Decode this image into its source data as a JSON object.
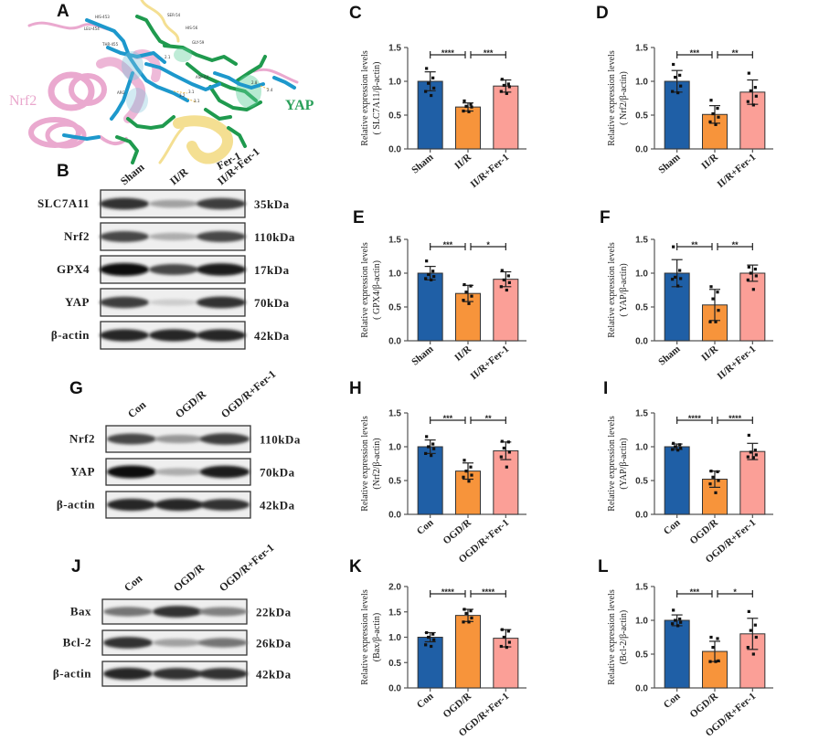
{
  "figure": {
    "panel_letters": [
      "A",
      "B",
      "C",
      "D",
      "E",
      "F",
      "G",
      "H",
      "I",
      "J",
      "K",
      "L"
    ]
  },
  "panel_a": {
    "letter": "A",
    "protein_labels": {
      "nrf2": "Nrf2",
      "yap": "YAP",
      "ligand": "Fer-1"
    },
    "residue_labels": [
      "HIS-453",
      "LEU-454",
      "THR-455",
      "SER-54",
      "HIS-56",
      "GLY-59",
      "ASP-64",
      "ARG",
      "3.2",
      "3.1",
      "3.1",
      "2.8",
      "2.4",
      "2.1"
    ],
    "colors": {
      "nrf2": "#e9a8cf",
      "yap": "#27a35a",
      "fer1": "#f2dc8a",
      "nrf2_residue": "#1f9bd0"
    }
  },
  "panel_b": {
    "letter": "B",
    "lanes": [
      "Sham",
      "II/R",
      "II/R+Fer-1"
    ],
    "rows": [
      {
        "protein": "SLC7A11",
        "kda": "35kDa",
        "intensity": [
          0.85,
          0.35,
          0.8
        ]
      },
      {
        "protein": "Nrf2",
        "kda": "110kDa",
        "intensity": [
          0.75,
          0.3,
          0.75
        ]
      },
      {
        "protein": "GPX4",
        "kda": "17kDa",
        "intensity": [
          1.0,
          0.75,
          0.95
        ]
      },
      {
        "protein": "YAP",
        "kda": "70kDa",
        "intensity": [
          0.8,
          0.15,
          0.85
        ]
      },
      {
        "protein": "β-actin",
        "kda": "42kDa",
        "intensity": [
          0.9,
          0.9,
          0.9
        ]
      }
    ]
  },
  "panel_g": {
    "letter": "G",
    "lanes": [
      "Con",
      "OGD/R",
      "OGD/R+Fer-1"
    ],
    "rows": [
      {
        "protein": "Nrf2",
        "kda": "110kDa",
        "intensity": [
          0.75,
          0.4,
          0.8
        ]
      },
      {
        "protein": "YAP",
        "kda": "70kDa",
        "intensity": [
          1.0,
          0.3,
          0.95
        ]
      },
      {
        "protein": "β-actin",
        "kda": "42kDa",
        "intensity": [
          0.9,
          0.9,
          0.85
        ]
      }
    ]
  },
  "panel_j": {
    "letter": "J",
    "lanes": [
      "Con",
      "OGD/R",
      "OGD/R+Fer-1"
    ],
    "rows": [
      {
        "protein": "Bax",
        "kda": "22kDa",
        "intensity": [
          0.55,
          0.85,
          0.5
        ]
      },
      {
        "protein": "Bcl-2",
        "kda": "26kDa",
        "intensity": [
          0.85,
          0.35,
          0.55
        ]
      },
      {
        "protein": "β-actin",
        "kda": "42kDa",
        "intensity": [
          0.9,
          0.85,
          0.85
        ]
      }
    ]
  },
  "colors": {
    "group1": "#1f5fa6",
    "group2": "#f7943b",
    "group3": "#fb9f97",
    "axis": "#444444"
  },
  "chart_data": [
    {
      "panel": "C",
      "type": "bar",
      "ylabel": "Relative expression levels",
      "ylabel2": "( SLC7A11/β-actin)",
      "categories": [
        "Sham",
        "II/R",
        "II/R+Fer-1"
      ],
      "values": [
        1.0,
        0.62,
        0.93
      ],
      "errors": [
        0.14,
        0.06,
        0.09
      ],
      "points": [
        [
          1.19,
          1.05,
          0.97,
          0.9,
          0.85,
          0.79
        ],
        [
          0.71,
          0.66,
          0.63,
          0.62,
          0.56,
          0.55
        ],
        [
          1.03,
          0.96,
          0.94,
          0.92,
          0.85,
          0.82
        ]
      ],
      "ylim": [
        0,
        1.5
      ],
      "yticks": [
        "0.0",
        "0.5",
        "1.0",
        "1.5"
      ],
      "significance": [
        {
          "from": 0,
          "to": 1,
          "label": "****"
        },
        {
          "from": 1,
          "to": 2,
          "label": "***"
        }
      ]
    },
    {
      "panel": "D",
      "type": "bar",
      "ylabel": "Relative expression levels",
      "ylabel2": "( Nrf2/β-actin)",
      "categories": [
        "Sham",
        "II/R",
        "II/R+Fer-1"
      ],
      "values": [
        1.0,
        0.51,
        0.84
      ],
      "errors": [
        0.16,
        0.13,
        0.18
      ],
      "points": [
        [
          1.25,
          1.09,
          1.06,
          0.93,
          0.85,
          0.83
        ],
        [
          0.72,
          0.6,
          0.52,
          0.47,
          0.4,
          0.36
        ],
        [
          1.12,
          0.91,
          0.86,
          0.78,
          0.7,
          0.65
        ]
      ],
      "ylim": [
        0,
        1.5
      ],
      "yticks": [
        "0.0",
        "0.5",
        "1.0",
        "1.5"
      ],
      "significance": [
        {
          "from": 0,
          "to": 1,
          "label": "***"
        },
        {
          "from": 1,
          "to": 2,
          "label": "**"
        }
      ]
    },
    {
      "panel": "E",
      "type": "bar",
      "ylabel": "Relative expression levels",
      "ylabel2": "( GPX4/β-actin)",
      "categories": [
        "Sham",
        "II/R",
        "II/R+Fer-1"
      ],
      "values": [
        1.0,
        0.7,
        0.91
      ],
      "errors": [
        0.1,
        0.12,
        0.11
      ],
      "points": [
        [
          1.18,
          1.03,
          0.98,
          0.95,
          0.92,
          0.9
        ],
        [
          0.83,
          0.81,
          0.72,
          0.66,
          0.6,
          0.55
        ],
        [
          1.04,
          0.96,
          0.9,
          0.86,
          0.8,
          0.75
        ]
      ],
      "ylim": [
        0,
        1.5
      ],
      "yticks": [
        "0.0",
        "0.5",
        "1.0",
        "1.5"
      ],
      "significance": [
        {
          "from": 0,
          "to": 1,
          "label": "***"
        },
        {
          "from": 1,
          "to": 2,
          "label": "*"
        }
      ]
    },
    {
      "panel": "F",
      "type": "bar",
      "ylabel": "Relative expression levels",
      "ylabel2": "( YAP/β-actin)",
      "categories": [
        "Sham",
        "II/R",
        "II/R+Fer-1"
      ],
      "values": [
        1.0,
        0.53,
        1.0
      ],
      "errors": [
        0.2,
        0.23,
        0.12
      ],
      "points": [
        [
          1.39,
          1.04,
          0.94,
          0.92,
          0.91,
          0.81
        ],
        [
          0.8,
          0.72,
          0.62,
          0.45,
          0.28,
          0.28
        ],
        [
          1.09,
          1.06,
          1.0,
          0.96,
          0.9,
          0.76
        ]
      ],
      "ylim": [
        0,
        1.5
      ],
      "yticks": [
        "0.0",
        "0.5",
        "1.0",
        "1.5"
      ],
      "significance": [
        {
          "from": 0,
          "to": 1,
          "label": "**"
        },
        {
          "from": 1,
          "to": 2,
          "label": "**"
        }
      ]
    },
    {
      "panel": "H",
      "type": "bar",
      "ylabel": "Relative expression levels",
      "ylabel2": "(Nrf2/β-actin)",
      "categories": [
        "Con",
        "OGD/R",
        "OGD/R+Fer-1"
      ],
      "values": [
        1.0,
        0.64,
        0.94
      ],
      "errors": [
        0.1,
        0.12,
        0.13
      ],
      "points": [
        [
          1.15,
          1.04,
          1.0,
          0.97,
          0.9,
          0.87
        ],
        [
          0.8,
          0.7,
          0.64,
          0.58,
          0.55,
          0.49
        ],
        [
          1.08,
          1.07,
          0.98,
          0.92,
          0.85,
          0.7
        ]
      ],
      "ylim": [
        0,
        1.5
      ],
      "yticks": [
        "0.0",
        "0.5",
        "1.0",
        "1.5"
      ],
      "significance": [
        {
          "from": 0,
          "to": 1,
          "label": "***"
        },
        {
          "from": 1,
          "to": 2,
          "label": "**"
        }
      ]
    },
    {
      "panel": "I",
      "type": "bar",
      "ylabel": "Relative expression levels",
      "ylabel2": "(YAP/β-actin)",
      "categories": [
        "Con",
        "OGD/R",
        "OGD/R+Fer-1"
      ],
      "values": [
        1.0,
        0.52,
        0.93
      ],
      "errors": [
        0.04,
        0.12,
        0.12
      ],
      "points": [
        [
          1.05,
          1.03,
          1.0,
          0.98,
          0.96,
          0.95
        ],
        [
          0.64,
          0.63,
          0.55,
          0.5,
          0.45,
          0.32
        ],
        [
          1.17,
          0.95,
          0.92,
          0.88,
          0.85,
          0.84
        ]
      ],
      "ylim": [
        0,
        1.5
      ],
      "yticks": [
        "0.0",
        "0.5",
        "1.0",
        "1.5"
      ],
      "significance": [
        {
          "from": 0,
          "to": 1,
          "label": "****"
        },
        {
          "from": 1,
          "to": 2,
          "label": "****"
        }
      ]
    },
    {
      "panel": "K",
      "type": "bar",
      "ylabel": "Relative expression levels",
      "ylabel2": "(Bax/β-actin)",
      "categories": [
        "Con",
        "OGD/R",
        "OGD/R+Fer-1"
      ],
      "values": [
        1.0,
        1.43,
        0.98
      ],
      "errors": [
        0.09,
        0.12,
        0.17
      ],
      "points": [
        [
          1.09,
          1.06,
          1.0,
          0.95,
          0.85,
          0.82
        ],
        [
          1.55,
          1.52,
          1.47,
          1.38,
          1.3,
          1.3
        ],
        [
          1.15,
          1.12,
          1.0,
          0.9,
          0.82,
          0.8
        ]
      ],
      "ylim": [
        0,
        2.0
      ],
      "yticks": [
        "0.0",
        "0.5",
        "1.0",
        "1.5",
        "2.0"
      ],
      "significance": [
        {
          "from": 0,
          "to": 1,
          "label": "****"
        },
        {
          "from": 1,
          "to": 2,
          "label": "****"
        }
      ]
    },
    {
      "panel": "L",
      "type": "bar",
      "ylabel": "Relative expression levels",
      "ylabel2": "(Bcl-2/β-actin)",
      "categories": [
        "Con",
        "OGD/R",
        "OGD/R+Fer-1"
      ],
      "values": [
        1.0,
        0.54,
        0.8
      ],
      "errors": [
        0.08,
        0.15,
        0.23
      ],
      "points": [
        [
          1.15,
          1.02,
          1.0,
          0.97,
          0.95,
          0.92
        ],
        [
          0.75,
          0.73,
          0.6,
          0.4,
          0.39,
          0.39
        ],
        [
          1.13,
          0.93,
          0.85,
          0.75,
          0.6,
          0.5
        ]
      ],
      "ylim": [
        0,
        1.5
      ],
      "yticks": [
        "0.0",
        "0.5",
        "1.0",
        "1.5"
      ],
      "significance": [
        {
          "from": 0,
          "to": 1,
          "label": "***"
        },
        {
          "from": 1,
          "to": 2,
          "label": "*"
        }
      ]
    }
  ]
}
